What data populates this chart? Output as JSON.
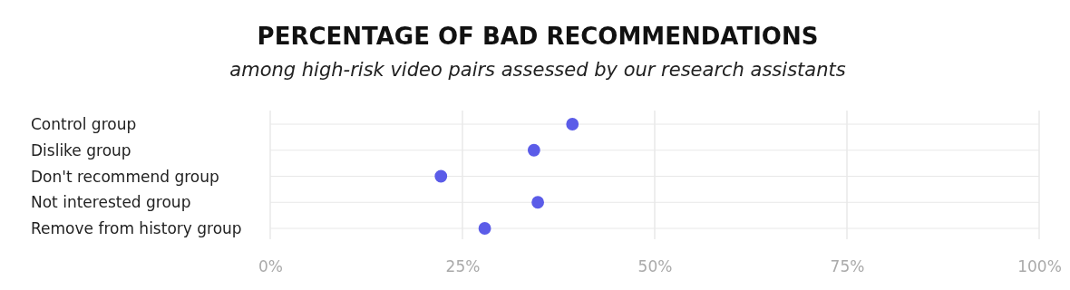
{
  "chart_data": {
    "type": "scatter",
    "orientation": "horizontal",
    "title": "PERCENTAGE OF BAD RECOMMENDATIONS",
    "subtitle": "among high-risk video pairs assessed by our research assistants",
    "categories": [
      "Control group",
      "Dislike group",
      "Don't recommend group",
      "Not interested group",
      "Remove from history group"
    ],
    "values": [
      39.3,
      34.3,
      22.2,
      34.8,
      27.9
    ],
    "color": "#5b5ce8",
    "marker": "circle",
    "xlim": [
      0,
      100
    ],
    "xticks": [
      {
        "value": 0,
        "label": "0%"
      },
      {
        "value": 25,
        "label": "25%"
      },
      {
        "value": 50,
        "label": "50%"
      },
      {
        "value": 75,
        "label": "75%"
      },
      {
        "value": 100,
        "label": "100%"
      }
    ],
    "grid": true
  }
}
